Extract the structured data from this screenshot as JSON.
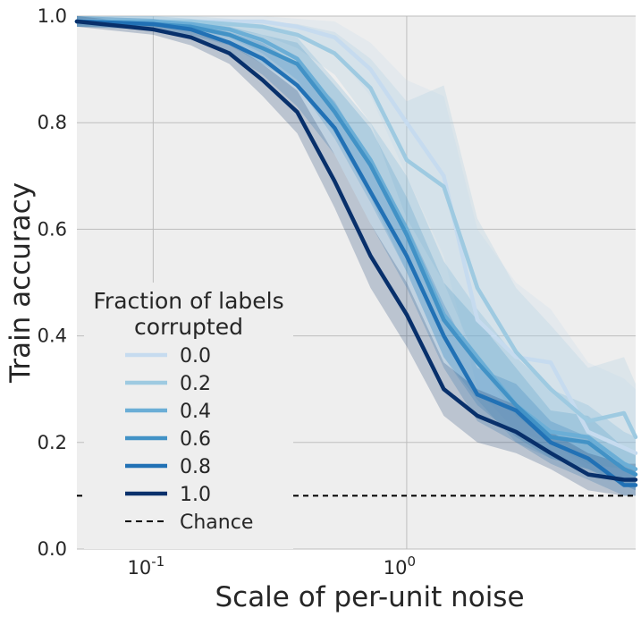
{
  "chart_data": {
    "type": "line",
    "xscale": "log",
    "xlim": [
      0.05,
      8.0
    ],
    "ylim": [
      0.0,
      1.0
    ],
    "xlabel": "Scale of per-unit noise",
    "ylabel": "Train accuracy",
    "yticks": [
      {
        "value": 0.0,
        "label": "0.0"
      },
      {
        "value": 0.2,
        "label": "0.2"
      },
      {
        "value": 0.4,
        "label": "0.4"
      },
      {
        "value": 0.6,
        "label": "0.6"
      },
      {
        "value": 0.8,
        "label": "0.8"
      },
      {
        "value": 1.0,
        "label": "1.0"
      }
    ],
    "xticks": [
      {
        "value": 0.1,
        "base": "10",
        "exp": "-1"
      },
      {
        "value": 1.0,
        "base": "10",
        "exp": "0"
      }
    ],
    "grid": true,
    "legend": {
      "title_lines": [
        "Fraction of labels",
        "corrupted"
      ],
      "position": "lower-left"
    },
    "x": [
      0.05,
      0.1,
      0.141,
      0.2,
      0.27,
      0.37,
      0.52,
      0.72,
      1.0,
      1.4,
      1.9,
      2.7,
      3.7,
      5.2,
      7.2,
      8.0
    ],
    "series": [
      {
        "name": "0.0",
        "color": "#c6dbef",
        "values": [
          0.99,
          0.99,
          0.99,
          0.99,
          0.99,
          0.98,
          0.96,
          0.9,
          0.8,
          0.7,
          0.43,
          0.36,
          0.35,
          0.22,
          0.19,
          0.18
        ],
        "lower": [
          0.98,
          0.98,
          0.98,
          0.98,
          0.98,
          0.96,
          0.93,
          0.85,
          0.7,
          0.55,
          0.3,
          0.22,
          0.2,
          0.15,
          0.13,
          0.12
        ],
        "upper": [
          1.0,
          1.0,
          1.0,
          1.0,
          1.0,
          0.995,
          0.99,
          0.95,
          0.88,
          0.85,
          0.6,
          0.5,
          0.45,
          0.35,
          0.32,
          0.3
        ]
      },
      {
        "name": "0.2",
        "color": "#9ecae1",
        "values": [
          0.99,
          0.99,
          0.99,
          0.985,
          0.98,
          0.965,
          0.93,
          0.865,
          0.73,
          0.68,
          0.49,
          0.37,
          0.3,
          0.24,
          0.255,
          0.21
        ],
        "lower": [
          0.98,
          0.98,
          0.98,
          0.975,
          0.965,
          0.94,
          0.89,
          0.8,
          0.62,
          0.5,
          0.35,
          0.25,
          0.2,
          0.16,
          0.15,
          0.14
        ],
        "upper": [
          1.0,
          1.0,
          1.0,
          0.995,
          0.99,
          0.985,
          0.97,
          0.92,
          0.84,
          0.87,
          0.62,
          0.49,
          0.42,
          0.34,
          0.36,
          0.31
        ]
      },
      {
        "name": "0.4",
        "color": "#6baed6",
        "values": [
          0.99,
          0.99,
          0.985,
          0.975,
          0.955,
          0.92,
          0.83,
          0.73,
          0.6,
          0.44,
          0.36,
          0.27,
          0.22,
          0.21,
          0.16,
          0.15
        ],
        "lower": [
          0.98,
          0.98,
          0.975,
          0.96,
          0.93,
          0.88,
          0.78,
          0.66,
          0.52,
          0.36,
          0.28,
          0.2,
          0.17,
          0.15,
          0.12,
          0.11
        ],
        "upper": [
          1.0,
          1.0,
          0.995,
          0.99,
          0.98,
          0.96,
          0.88,
          0.8,
          0.7,
          0.54,
          0.45,
          0.36,
          0.3,
          0.27,
          0.22,
          0.21
        ]
      },
      {
        "name": "0.6",
        "color": "#4292c6",
        "values": [
          0.99,
          0.985,
          0.98,
          0.965,
          0.94,
          0.91,
          0.82,
          0.72,
          0.59,
          0.43,
          0.35,
          0.27,
          0.21,
          0.2,
          0.15,
          0.14
        ],
        "lower": [
          0.98,
          0.975,
          0.965,
          0.945,
          0.91,
          0.87,
          0.77,
          0.65,
          0.52,
          0.36,
          0.27,
          0.21,
          0.17,
          0.15,
          0.12,
          0.11
        ],
        "upper": [
          1.0,
          0.995,
          0.99,
          0.98,
          0.965,
          0.95,
          0.87,
          0.79,
          0.66,
          0.5,
          0.43,
          0.34,
          0.26,
          0.25,
          0.19,
          0.18
        ]
      },
      {
        "name": "0.8",
        "color": "#2171b5",
        "values": [
          0.99,
          0.985,
          0.975,
          0.95,
          0.92,
          0.87,
          0.79,
          0.67,
          0.55,
          0.4,
          0.29,
          0.26,
          0.2,
          0.17,
          0.12,
          0.12
        ],
        "lower": [
          0.98,
          0.975,
          0.96,
          0.93,
          0.89,
          0.83,
          0.74,
          0.61,
          0.49,
          0.34,
          0.24,
          0.2,
          0.16,
          0.13,
          0.1,
          0.1
        ],
        "upper": [
          1.0,
          0.995,
          0.99,
          0.97,
          0.95,
          0.91,
          0.84,
          0.73,
          0.61,
          0.46,
          0.34,
          0.31,
          0.24,
          0.21,
          0.15,
          0.15
        ]
      },
      {
        "name": "1.0",
        "color": "#08306b",
        "values": [
          0.99,
          0.975,
          0.96,
          0.93,
          0.88,
          0.82,
          0.69,
          0.55,
          0.44,
          0.3,
          0.25,
          0.22,
          0.18,
          0.14,
          0.13,
          0.13
        ],
        "lower": [
          0.98,
          0.965,
          0.945,
          0.91,
          0.85,
          0.78,
          0.64,
          0.49,
          0.38,
          0.25,
          0.2,
          0.18,
          0.15,
          0.11,
          0.1,
          0.1
        ],
        "upper": [
          1.0,
          0.985,
          0.975,
          0.95,
          0.91,
          0.86,
          0.74,
          0.61,
          0.5,
          0.35,
          0.3,
          0.27,
          0.22,
          0.18,
          0.16,
          0.16
        ]
      }
    ],
    "chance": {
      "name": "Chance",
      "value": 0.1,
      "color": "#000000"
    }
  }
}
